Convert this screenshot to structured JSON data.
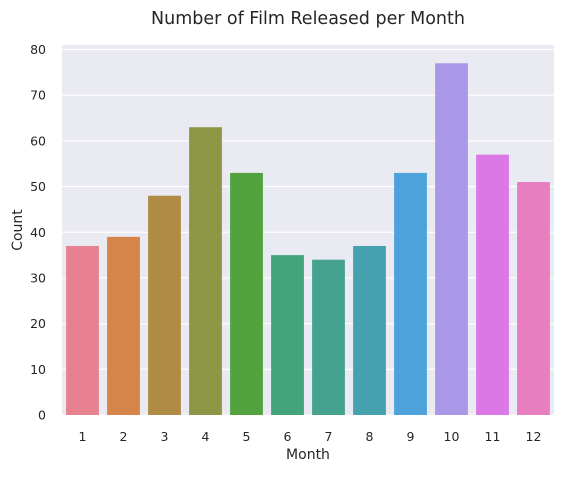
{
  "chart_data": {
    "type": "bar",
    "title": "Number of Film Released per Month",
    "xlabel": "Month",
    "ylabel": "Count",
    "categories": [
      "1",
      "2",
      "3",
      "4",
      "5",
      "6",
      "7",
      "8",
      "9",
      "10",
      "11",
      "12"
    ],
    "values": [
      37,
      39,
      48,
      63,
      53,
      35,
      34,
      37,
      53,
      77,
      57,
      51
    ],
    "ylim": [
      0,
      81
    ],
    "yticks": [
      0,
      10,
      20,
      30,
      40,
      50,
      60,
      70,
      80
    ],
    "grid": true,
    "legend": "none",
    "colors": [
      "#e8818f",
      "#d5854a",
      "#b08b45",
      "#8c9645",
      "#52a23e",
      "#43a37b",
      "#45a28f",
      "#45a1ae",
      "#4ea2dc",
      "#a997e8",
      "#db78e6",
      "#e67ec0"
    ],
    "background": "#eaeaf2"
  }
}
